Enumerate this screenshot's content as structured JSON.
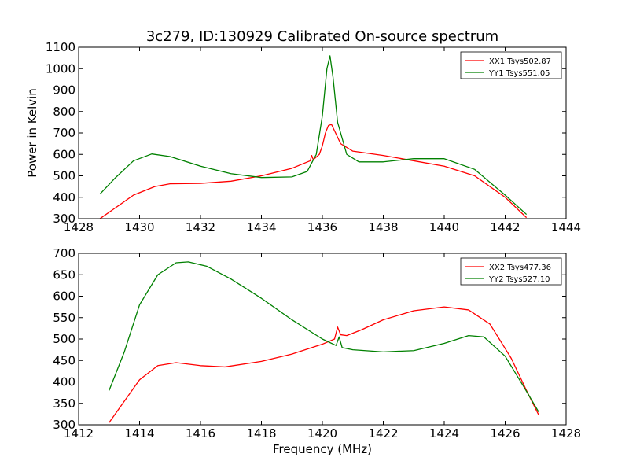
{
  "chart_data": [
    {
      "type": "line",
      "title": "3c279, ID:130929 Calibrated On-source spectrum",
      "xlabel": "",
      "ylabel": "Power in Kelvin",
      "xlim": [
        1428,
        1444
      ],
      "ylim": [
        300,
        1100
      ],
      "xticks": [
        "1428",
        "1430",
        "1432",
        "1434",
        "1436",
        "1438",
        "1440",
        "1442",
        "1444"
      ],
      "yticks": [
        "300",
        "400",
        "500",
        "600",
        "700",
        "800",
        "900",
        "1000",
        "1100"
      ],
      "legend_position": "top-right",
      "grid": false,
      "series": [
        {
          "name": "XX1 Tsys502.87",
          "color": "#ff0000",
          "points": [
            [
              1428.7,
              300
            ],
            [
              1429.2,
              350
            ],
            [
              1429.8,
              410
            ],
            [
              1430.5,
              450
            ],
            [
              1431,
              463
            ],
            [
              1432,
              465
            ],
            [
              1433,
              475
            ],
            [
              1434,
              500
            ],
            [
              1435,
              535
            ],
            [
              1435.6,
              570
            ],
            [
              1435.65,
              595
            ],
            [
              1435.7,
              575
            ],
            [
              1435.9,
              600
            ],
            [
              1436.0,
              640
            ],
            [
              1436.1,
              700
            ],
            [
              1436.2,
              735
            ],
            [
              1436.3,
              740
            ],
            [
              1436.4,
              710
            ],
            [
              1436.6,
              650
            ],
            [
              1437,
              615
            ],
            [
              1438,
              595
            ],
            [
              1439,
              570
            ],
            [
              1440,
              545
            ],
            [
              1441,
              500
            ],
            [
              1442,
              400
            ],
            [
              1442.7,
              305
            ]
          ]
        },
        {
          "name": "YY1 Tsys551.05",
          "color": "#008000",
          "points": [
            [
              1428.7,
              415
            ],
            [
              1429.2,
              490
            ],
            [
              1429.8,
              570
            ],
            [
              1430.4,
              602
            ],
            [
              1431,
              590
            ],
            [
              1432,
              545
            ],
            [
              1433,
              510
            ],
            [
              1434,
              492
            ],
            [
              1435,
              495
            ],
            [
              1435.5,
              520
            ],
            [
              1435.8,
              600
            ],
            [
              1436.0,
              780
            ],
            [
              1436.15,
              1000
            ],
            [
              1436.25,
              1060
            ],
            [
              1436.35,
              960
            ],
            [
              1436.5,
              750
            ],
            [
              1436.8,
              600
            ],
            [
              1437.2,
              565
            ],
            [
              1438,
              565
            ],
            [
              1439,
              580
            ],
            [
              1440,
              580
            ],
            [
              1441,
              530
            ],
            [
              1442,
              410
            ],
            [
              1442.7,
              320
            ]
          ]
        }
      ]
    },
    {
      "type": "line",
      "title": "",
      "xlabel": "Frequency (MHz)",
      "ylabel": "",
      "xlim": [
        1412,
        1428
      ],
      "ylim": [
        300,
        700
      ],
      "xticks": [
        "1412",
        "1414",
        "1416",
        "1418",
        "1420",
        "1422",
        "1424",
        "1426",
        "1428"
      ],
      "yticks": [
        "300",
        "350",
        "400",
        "450",
        "500",
        "550",
        "600",
        "650",
        "700"
      ],
      "legend_position": "top-right",
      "grid": false,
      "series": [
        {
          "name": "XX2 Tsys477.36",
          "color": "#ff0000",
          "points": [
            [
              1413,
              305
            ],
            [
              1413.5,
              355
            ],
            [
              1414,
              405
            ],
            [
              1414.6,
              438
            ],
            [
              1415.2,
              445
            ],
            [
              1416,
              438
            ],
            [
              1416.8,
              435
            ],
            [
              1418,
              448
            ],
            [
              1419,
              465
            ],
            [
              1420,
              488
            ],
            [
              1420.4,
              500
            ],
            [
              1420.5,
              528
            ],
            [
              1420.6,
              510
            ],
            [
              1420.8,
              508
            ],
            [
              1421.3,
              522
            ],
            [
              1422,
              545
            ],
            [
              1423,
              566
            ],
            [
              1424,
              575
            ],
            [
              1424.8,
              568
            ],
            [
              1425.5,
              535
            ],
            [
              1426.2,
              455
            ],
            [
              1426.7,
              380
            ],
            [
              1427.1,
              323
            ]
          ]
        },
        {
          "name": "YY2 Tsys527.10",
          "color": "#008000",
          "points": [
            [
              1413,
              380
            ],
            [
              1413.5,
              470
            ],
            [
              1414,
              580
            ],
            [
              1414.6,
              650
            ],
            [
              1415.2,
              678
            ],
            [
              1415.6,
              680
            ],
            [
              1416.2,
              670
            ],
            [
              1417,
              640
            ],
            [
              1418,
              595
            ],
            [
              1419,
              545
            ],
            [
              1420,
              500
            ],
            [
              1420.45,
              485
            ],
            [
              1420.55,
              505
            ],
            [
              1420.65,
              480
            ],
            [
              1421,
              475
            ],
            [
              1422,
              470
            ],
            [
              1423,
              473
            ],
            [
              1424,
              490
            ],
            [
              1424.8,
              508
            ],
            [
              1425.3,
              505
            ],
            [
              1426,
              460
            ],
            [
              1426.6,
              390
            ],
            [
              1427.1,
              330
            ]
          ]
        }
      ]
    }
  ]
}
